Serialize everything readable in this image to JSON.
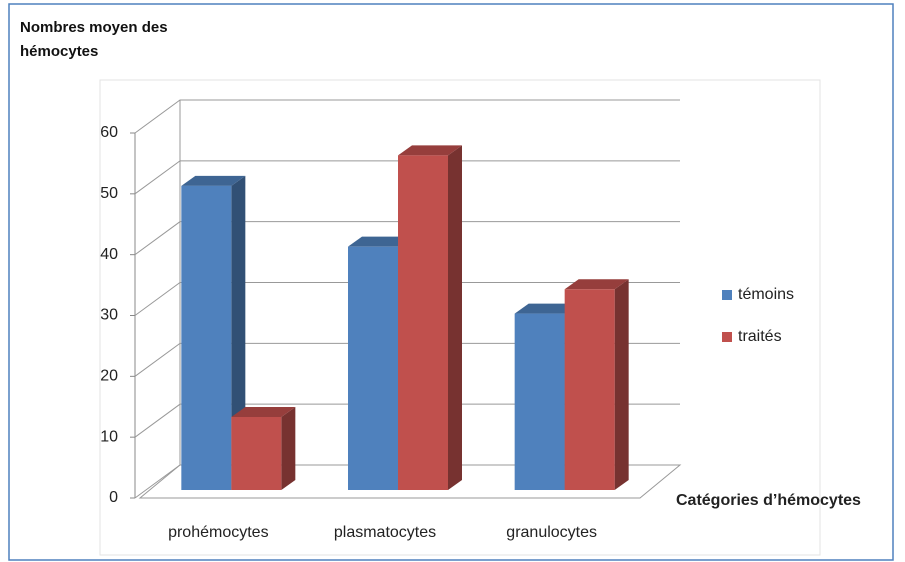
{
  "chart_data": {
    "type": "bar3d",
    "ylabel": "Nombres moyen des hémocytes",
    "xlabel": "Catégories d’hémocytes",
    "categories": [
      "prohémocytes",
      "plasmatocytes",
      "granulocytes"
    ],
    "series": [
      {
        "name": "témoins",
        "color": "#4f81bd",
        "values": [
          50,
          40,
          29
        ]
      },
      {
        "name": "traités",
        "color": "#c0504d",
        "values": [
          12,
          55,
          33
        ]
      }
    ],
    "ylim": [
      0,
      60
    ],
    "yticks": [
      0,
      10,
      20,
      30,
      40,
      50,
      60
    ],
    "grid": true,
    "legend": "right"
  }
}
